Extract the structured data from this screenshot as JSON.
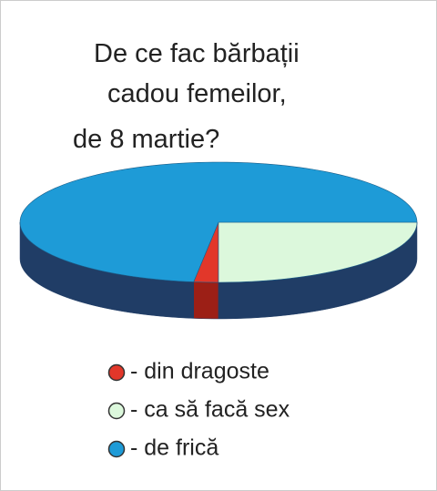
{
  "chart_data": {
    "type": "pie",
    "title": [
      "De ce fac bărbații",
      "cadou femeilor,",
      "de 8 martie?"
    ],
    "categories": [
      "- din dragoste",
      "- ca să facă sex",
      "- de frică"
    ],
    "values": [
      2,
      25,
      73
    ],
    "colors": [
      "#e2372a",
      "#dcf8dc",
      "#1e9bd7"
    ],
    "side_color": "#203d66",
    "legend": "bottom-left"
  }
}
